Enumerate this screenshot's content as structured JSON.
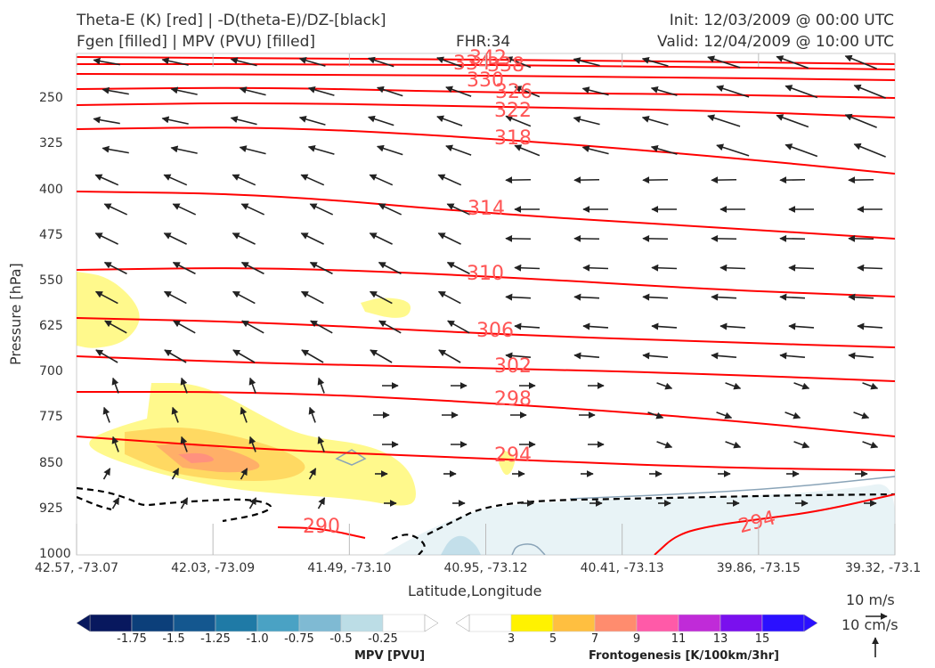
{
  "header": {
    "title_line1": "Theta-E (K) [red] | -D(theta-E)/DZ-[black]",
    "title_line2": "Fgen [filled] | MPV (PVU) [filled]",
    "fhr": "FHR:34",
    "init": "Init: 12/03/2009 @ 00:00 UTC",
    "valid": "Valid: 12/04/2009 @ 10:00 UTC"
  },
  "chart_data": {
    "type": "cross-section",
    "xlabel": "Latitude,Longitude",
    "ylabel": "Pressure [hPa]",
    "x_ticks": [
      "42.57, -73.07",
      "42.03, -73.09",
      "41.49, -73.10",
      "40.95, -73.12",
      "40.41, -73.13",
      "39.86, -73.15",
      "39.32, -73.1"
    ],
    "y_ticks": [
      250,
      325,
      400,
      475,
      550,
      625,
      700,
      775,
      850,
      925,
      1000
    ],
    "ylim": [
      1000,
      175
    ],
    "theta_e_contour_labels": [
      342,
      334,
      338,
      330,
      326,
      322,
      318,
      314,
      310,
      306,
      302,
      298,
      294,
      290,
      294
    ],
    "colors": {
      "theta_e": "#ff0000",
      "theta_e_label": "#ff5555",
      "stability": "#000000",
      "wind": "#222222"
    },
    "wind_reference": {
      "label_u": "10 m/s",
      "label_v": "10 cm/s"
    },
    "mpv_colorbar": {
      "label": "MPV [PVU]",
      "ticks": [
        "-1.75",
        "-1.5",
        "-1.25",
        "-1.0",
        "-0.75",
        "-0.5",
        "-0.25"
      ],
      "colors": [
        "#08185e",
        "#0c3f7a",
        "#14578f",
        "#1f7aa6",
        "#4aa2c4",
        "#7fbad3",
        "#bcdde6",
        "#ffffff"
      ]
    },
    "fgen_colorbar": {
      "label": "Frontogenesis [K/100km/3hr]",
      "ticks": [
        "3",
        "5",
        "7",
        "9",
        "11",
        "13",
        "15"
      ],
      "colors": [
        "#ffffff",
        "#fff200",
        "#ffbf40",
        "#ff8c6e",
        "#ff5aa8",
        "#c02bd8",
        "#7a10ee",
        "#2b10ff"
      ]
    }
  }
}
